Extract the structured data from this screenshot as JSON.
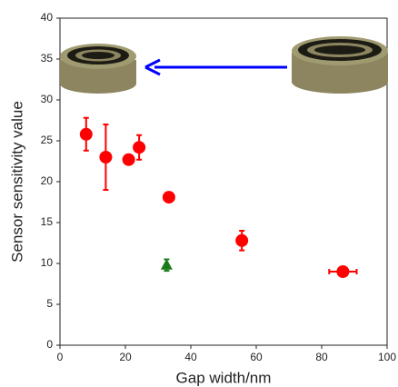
{
  "chart_data": {
    "type": "scatter",
    "xlabel": "Gap width/nm",
    "ylabel": "Sensor sensitivity value",
    "xlim": [
      0,
      100
    ],
    "xticks": [
      0,
      20,
      40,
      60,
      80,
      100
    ],
    "ylim": [
      0,
      40
    ],
    "yticks": [
      0,
      5,
      10,
      15,
      20,
      25,
      30,
      35,
      40
    ],
    "series": [
      {
        "color": "#ff0000",
        "marker": "circle",
        "x": [
          8,
          14,
          21,
          24.2,
          33.3,
          55.6,
          86.5
        ],
        "values": [
          25.8,
          23,
          22.7,
          24.2,
          18.1,
          12.8,
          9
        ],
        "y_errors": [
          2,
          4,
          0.6,
          1.5,
          0.3,
          1.2,
          0.3
        ],
        "x_errors": [
          null,
          null,
          1,
          1,
          1,
          1,
          4.2
        ]
      },
      {
        "color": "#1a7a1a",
        "marker": "triangle",
        "x": [
          32.6
        ],
        "values": [
          9.8
        ],
        "y_errors": [
          0.7
        ],
        "x_errors": [
          null
        ]
      }
    ]
  }
}
